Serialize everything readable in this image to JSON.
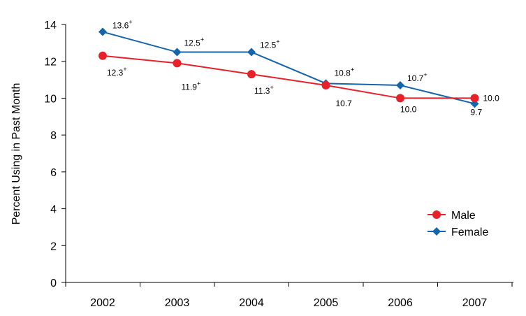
{
  "chart_data": {
    "type": "line",
    "title": "",
    "xlabel": "",
    "ylabel": "Percent Using in Past Month",
    "x": [
      "2002",
      "2003",
      "2004",
      "2005",
      "2006",
      "2007"
    ],
    "ylim": [
      0,
      14
    ],
    "yticks": [
      0,
      2,
      4,
      6,
      8,
      10,
      12,
      14
    ],
    "grid": false,
    "legend_position": "bottom-right",
    "series": [
      {
        "name": "Male",
        "color": "#e8202a",
        "marker": "circle",
        "values": [
          12.3,
          11.9,
          11.3,
          10.7,
          10.0,
          10.0
        ],
        "labels": [
          "12.3",
          "11.9",
          "11.3",
          "10.7",
          "10.0",
          "10.0"
        ],
        "label_sup": [
          "+",
          "+",
          "+",
          "",
          "",
          ""
        ]
      },
      {
        "name": "Female",
        "color": "#1565ad",
        "marker": "diamond",
        "values": [
          13.6,
          12.5,
          12.5,
          10.8,
          10.7,
          9.7
        ],
        "labels": [
          "13.6",
          "12.5",
          "12.5",
          "10.8",
          "10.7",
          "9.7"
        ],
        "label_sup": [
          "+",
          "+",
          "+",
          "+",
          "+",
          ""
        ]
      }
    ]
  }
}
